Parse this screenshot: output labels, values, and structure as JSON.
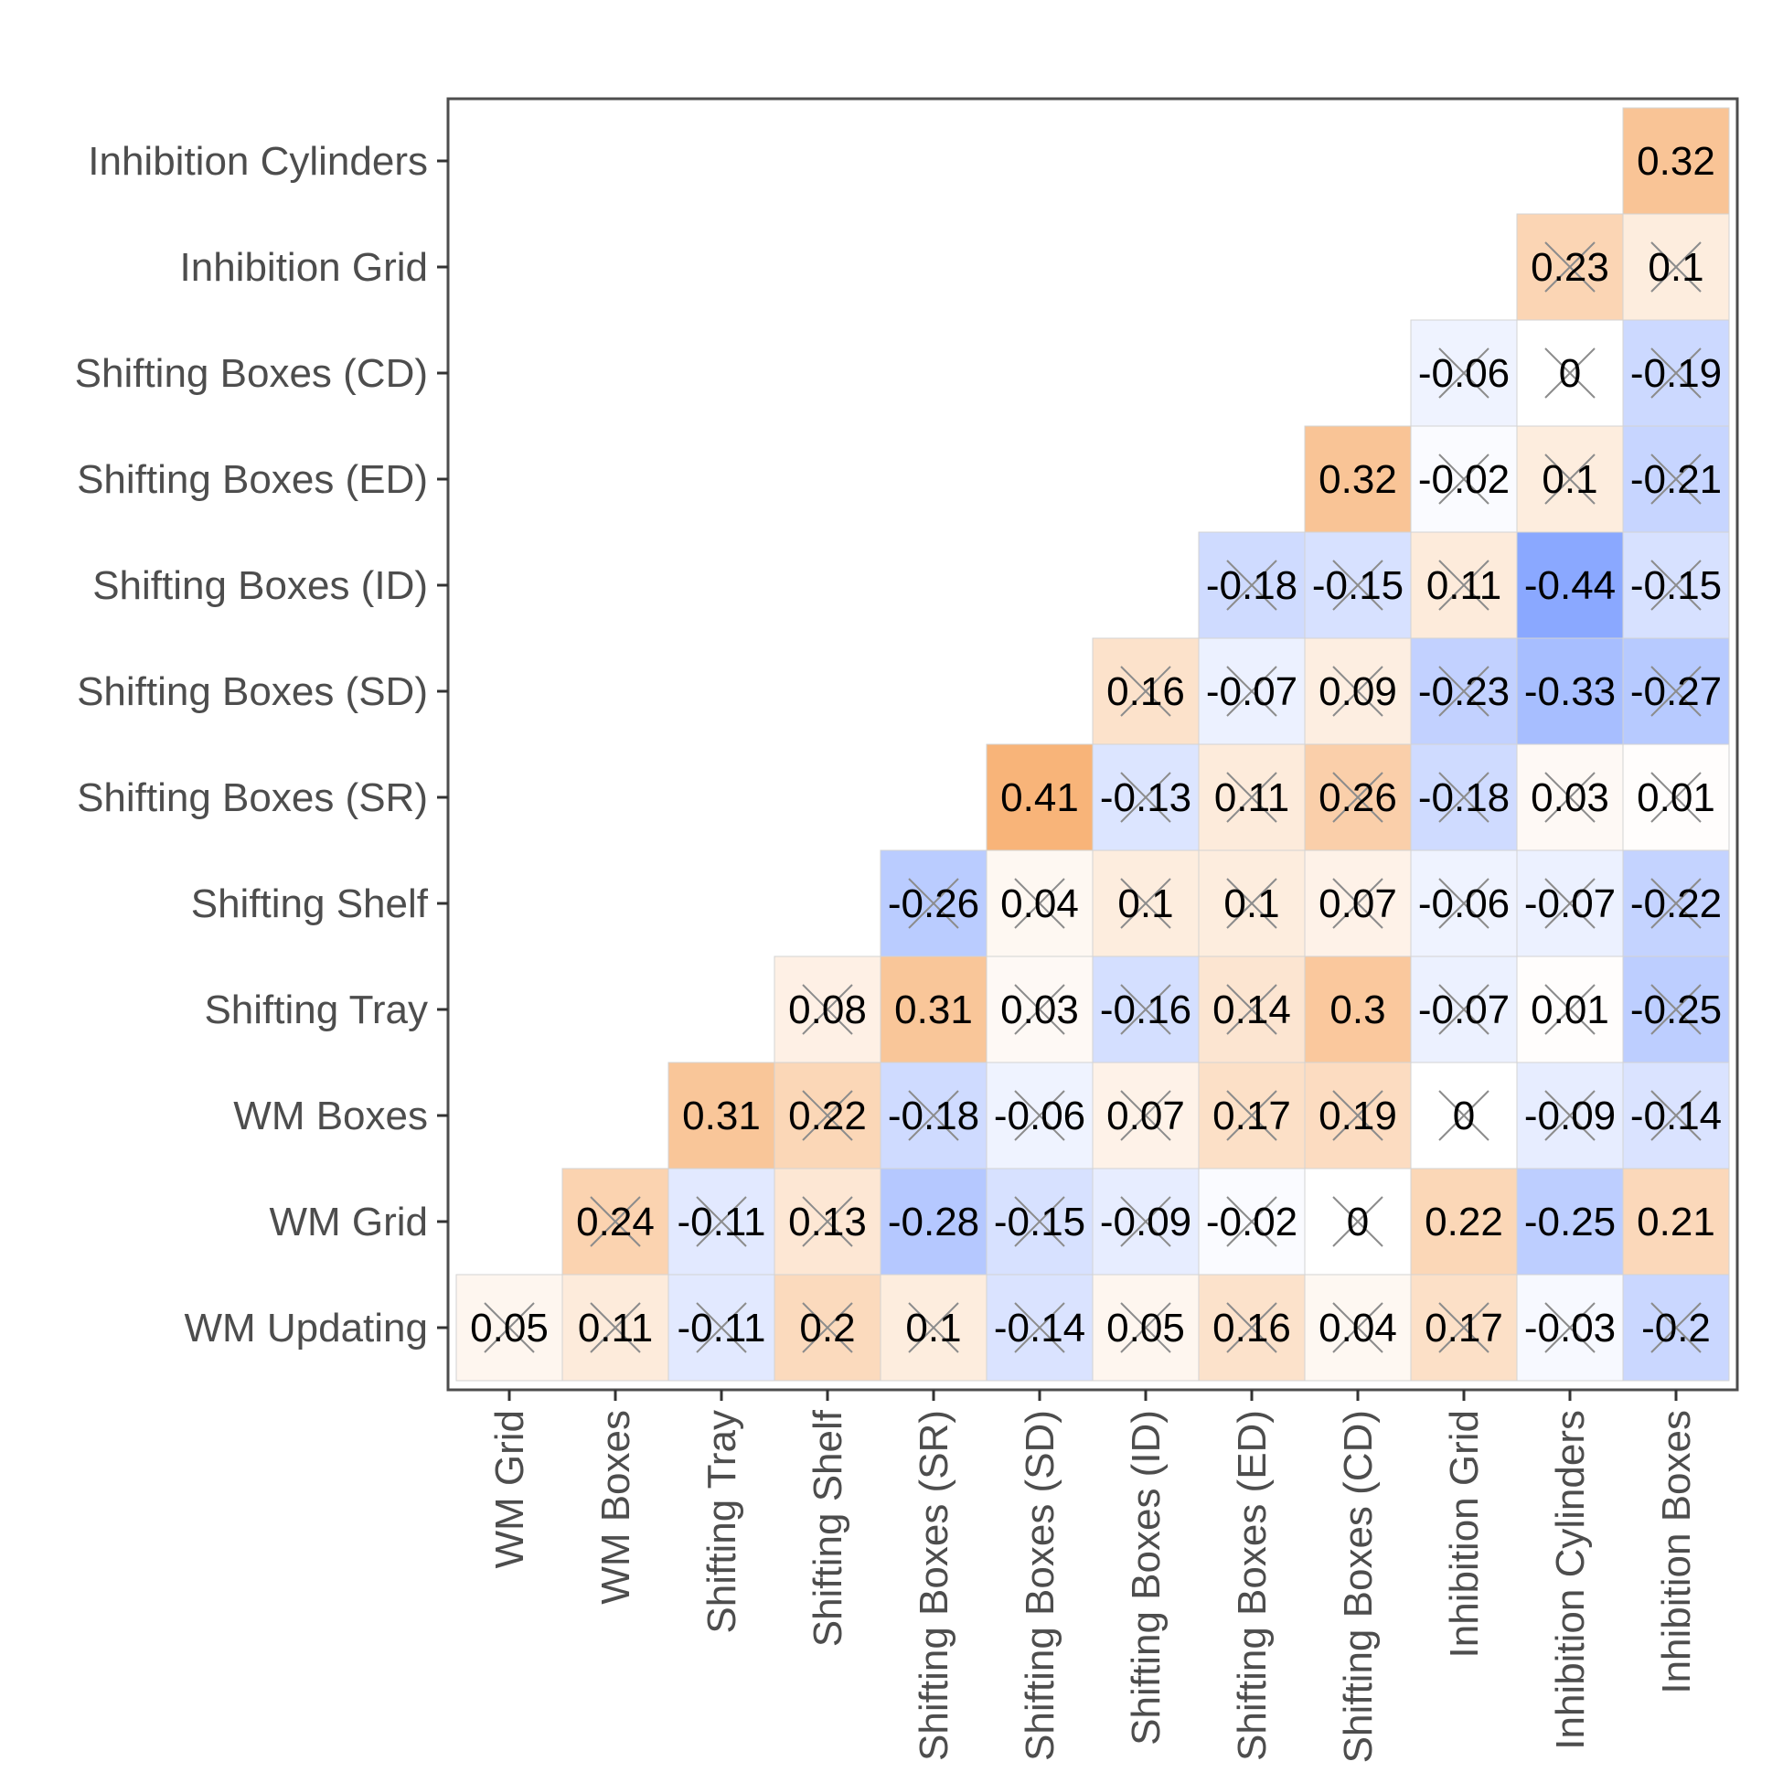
{
  "chart_data": {
    "type": "heatmap",
    "subtype": "correlation-lower-triangle",
    "rows": [
      "Inhibition Cylinders",
      "Inhibition Grid",
      "Shifting Boxes (CD)",
      "Shifting Boxes (ED)",
      "Shifting Boxes (ID)",
      "Shifting Boxes (SD)",
      "Shifting Boxes (SR)",
      "Shifting Shelf",
      "Shifting Tray",
      "WM Boxes",
      "WM Grid",
      "WM Updating"
    ],
    "columns": [
      "WM Grid",
      "WM Boxes",
      "Shifting Tray",
      "Shifting Shelf",
      "Shifting Boxes (SR)",
      "Shifting Boxes (SD)",
      "Shifting Boxes (ID)",
      "Shifting Boxes (ED)",
      "Shifting Boxes (CD)",
      "Inhibition Grid",
      "Inhibition Cylinders",
      "Inhibition Boxes"
    ],
    "cells": [
      {
        "row": "Inhibition Cylinders",
        "col": "Inhibition Boxes",
        "value": 0.32,
        "label": "0.32",
        "crossed": false
      },
      {
        "row": "Inhibition Grid",
        "col": "Inhibition Cylinders",
        "value": 0.23,
        "label": "0.23",
        "crossed": true
      },
      {
        "row": "Inhibition Grid",
        "col": "Inhibition Boxes",
        "value": 0.1,
        "label": "0.1",
        "crossed": true
      },
      {
        "row": "Shifting Boxes (CD)",
        "col": "Inhibition Grid",
        "value": -0.06,
        "label": "-0.06",
        "crossed": true
      },
      {
        "row": "Shifting Boxes (CD)",
        "col": "Inhibition Cylinders",
        "value": 0,
        "label": "0",
        "crossed": true
      },
      {
        "row": "Shifting Boxes (CD)",
        "col": "Inhibition Boxes",
        "value": -0.19,
        "label": "-0.19",
        "crossed": true
      },
      {
        "row": "Shifting Boxes (ED)",
        "col": "Shifting Boxes (CD)",
        "value": 0.32,
        "label": "0.32",
        "crossed": false
      },
      {
        "row": "Shifting Boxes (ED)",
        "col": "Inhibition Grid",
        "value": -0.02,
        "label": "-0.02",
        "crossed": true
      },
      {
        "row": "Shifting Boxes (ED)",
        "col": "Inhibition Cylinders",
        "value": 0.1,
        "label": "0.1",
        "crossed": true
      },
      {
        "row": "Shifting Boxes (ED)",
        "col": "Inhibition Boxes",
        "value": -0.21,
        "label": "-0.21",
        "crossed": true
      },
      {
        "row": "Shifting Boxes (ID)",
        "col": "Shifting Boxes (ED)",
        "value": -0.18,
        "label": "-0.18",
        "crossed": true
      },
      {
        "row": "Shifting Boxes (ID)",
        "col": "Shifting Boxes (CD)",
        "value": -0.15,
        "label": "-0.15",
        "crossed": true
      },
      {
        "row": "Shifting Boxes (ID)",
        "col": "Inhibition Grid",
        "value": 0.11,
        "label": "0.11",
        "crossed": true
      },
      {
        "row": "Shifting Boxes (ID)",
        "col": "Inhibition Cylinders",
        "value": -0.44,
        "label": "-0.44",
        "crossed": false
      },
      {
        "row": "Shifting Boxes (ID)",
        "col": "Inhibition Boxes",
        "value": -0.15,
        "label": "-0.15",
        "crossed": true
      },
      {
        "row": "Shifting Boxes (SD)",
        "col": "Shifting Boxes (ID)",
        "value": 0.16,
        "label": "0.16",
        "crossed": true
      },
      {
        "row": "Shifting Boxes (SD)",
        "col": "Shifting Boxes (ED)",
        "value": -0.07,
        "label": "-0.07",
        "crossed": true
      },
      {
        "row": "Shifting Boxes (SD)",
        "col": "Shifting Boxes (CD)",
        "value": 0.09,
        "label": "0.09",
        "crossed": true
      },
      {
        "row": "Shifting Boxes (SD)",
        "col": "Inhibition Grid",
        "value": -0.23,
        "label": "-0.23",
        "crossed": true
      },
      {
        "row": "Shifting Boxes (SD)",
        "col": "Inhibition Cylinders",
        "value": -0.33,
        "label": "-0.33",
        "crossed": false
      },
      {
        "row": "Shifting Boxes (SD)",
        "col": "Inhibition Boxes",
        "value": -0.27,
        "label": "-0.27",
        "crossed": true
      },
      {
        "row": "Shifting Boxes (SR)",
        "col": "Shifting Boxes (SD)",
        "value": 0.41,
        "label": "0.41",
        "crossed": false
      },
      {
        "row": "Shifting Boxes (SR)",
        "col": "Shifting Boxes (ID)",
        "value": -0.13,
        "label": "-0.13",
        "crossed": true
      },
      {
        "row": "Shifting Boxes (SR)",
        "col": "Shifting Boxes (ED)",
        "value": 0.11,
        "label": "0.11",
        "crossed": true
      },
      {
        "row": "Shifting Boxes (SR)",
        "col": "Shifting Boxes (CD)",
        "value": 0.26,
        "label": "0.26",
        "crossed": true
      },
      {
        "row": "Shifting Boxes (SR)",
        "col": "Inhibition Grid",
        "value": -0.18,
        "label": "-0.18",
        "crossed": true
      },
      {
        "row": "Shifting Boxes (SR)",
        "col": "Inhibition Cylinders",
        "value": 0.03,
        "label": "0.03",
        "crossed": true
      },
      {
        "row": "Shifting Boxes (SR)",
        "col": "Inhibition Boxes",
        "value": 0.01,
        "label": "0.01",
        "crossed": true
      },
      {
        "row": "Shifting Shelf",
        "col": "Shifting Boxes (SR)",
        "value": -0.26,
        "label": "-0.26",
        "crossed": true
      },
      {
        "row": "Shifting Shelf",
        "col": "Shifting Boxes (SD)",
        "value": 0.04,
        "label": "0.04",
        "crossed": true
      },
      {
        "row": "Shifting Shelf",
        "col": "Shifting Boxes (ID)",
        "value": 0.1,
        "label": "0.1",
        "crossed": true
      },
      {
        "row": "Shifting Shelf",
        "col": "Shifting Boxes (ED)",
        "value": 0.1,
        "label": "0.1",
        "crossed": true
      },
      {
        "row": "Shifting Shelf",
        "col": "Shifting Boxes (CD)",
        "value": 0.07,
        "label": "0.07",
        "crossed": true
      },
      {
        "row": "Shifting Shelf",
        "col": "Inhibition Grid",
        "value": -0.06,
        "label": "-0.06",
        "crossed": true
      },
      {
        "row": "Shifting Shelf",
        "col": "Inhibition Cylinders",
        "value": -0.07,
        "label": "-0.07",
        "crossed": true
      },
      {
        "row": "Shifting Shelf",
        "col": "Inhibition Boxes",
        "value": -0.22,
        "label": "-0.22",
        "crossed": true
      },
      {
        "row": "Shifting Tray",
        "col": "Shifting Shelf",
        "value": 0.08,
        "label": "0.08",
        "crossed": true
      },
      {
        "row": "Shifting Tray",
        "col": "Shifting Boxes (SR)",
        "value": 0.31,
        "label": "0.31",
        "crossed": false
      },
      {
        "row": "Shifting Tray",
        "col": "Shifting Boxes (SD)",
        "value": 0.03,
        "label": "0.03",
        "crossed": true
      },
      {
        "row": "Shifting Tray",
        "col": "Shifting Boxes (ID)",
        "value": -0.16,
        "label": "-0.16",
        "crossed": true
      },
      {
        "row": "Shifting Tray",
        "col": "Shifting Boxes (ED)",
        "value": 0.14,
        "label": "0.14",
        "crossed": true
      },
      {
        "row": "Shifting Tray",
        "col": "Shifting Boxes (CD)",
        "value": 0.3,
        "label": "0.3",
        "crossed": false
      },
      {
        "row": "Shifting Tray",
        "col": "Inhibition Grid",
        "value": -0.07,
        "label": "-0.07",
        "crossed": true
      },
      {
        "row": "Shifting Tray",
        "col": "Inhibition Cylinders",
        "value": 0.01,
        "label": "0.01",
        "crossed": true
      },
      {
        "row": "Shifting Tray",
        "col": "Inhibition Boxes",
        "value": -0.25,
        "label": "-0.25",
        "crossed": true
      },
      {
        "row": "WM Boxes",
        "col": "Shifting Tray",
        "value": 0.31,
        "label": "0.31",
        "crossed": false
      },
      {
        "row": "WM Boxes",
        "col": "Shifting Shelf",
        "value": 0.22,
        "label": "0.22",
        "crossed": true
      },
      {
        "row": "WM Boxes",
        "col": "Shifting Boxes (SR)",
        "value": -0.18,
        "label": "-0.18",
        "crossed": true
      },
      {
        "row": "WM Boxes",
        "col": "Shifting Boxes (SD)",
        "value": -0.06,
        "label": "-0.06",
        "crossed": true
      },
      {
        "row": "WM Boxes",
        "col": "Shifting Boxes (ID)",
        "value": 0.07,
        "label": "0.07",
        "crossed": true
      },
      {
        "row": "WM Boxes",
        "col": "Shifting Boxes (ED)",
        "value": 0.17,
        "label": "0.17",
        "crossed": true
      },
      {
        "row": "WM Boxes",
        "col": "Shifting Boxes (CD)",
        "value": 0.19,
        "label": "0.19",
        "crossed": true
      },
      {
        "row": "WM Boxes",
        "col": "Inhibition Grid",
        "value": 0,
        "label": "0",
        "crossed": true
      },
      {
        "row": "WM Boxes",
        "col": "Inhibition Cylinders",
        "value": -0.09,
        "label": "-0.09",
        "crossed": true
      },
      {
        "row": "WM Boxes",
        "col": "Inhibition Boxes",
        "value": -0.14,
        "label": "-0.14",
        "crossed": true
      },
      {
        "row": "WM Grid",
        "col": "WM Boxes",
        "value": 0.24,
        "label": "0.24",
        "crossed": true
      },
      {
        "row": "WM Grid",
        "col": "Shifting Tray",
        "value": -0.11,
        "label": "-0.11",
        "crossed": true
      },
      {
        "row": "WM Grid",
        "col": "Shifting Shelf",
        "value": 0.13,
        "label": "0.13",
        "crossed": true
      },
      {
        "row": "WM Grid",
        "col": "Shifting Boxes (SR)",
        "value": -0.28,
        "label": "-0.28",
        "crossed": false
      },
      {
        "row": "WM Grid",
        "col": "Shifting Boxes (SD)",
        "value": -0.15,
        "label": "-0.15",
        "crossed": true
      },
      {
        "row": "WM Grid",
        "col": "Shifting Boxes (ID)",
        "value": -0.09,
        "label": "-0.09",
        "crossed": true
      },
      {
        "row": "WM Grid",
        "col": "Shifting Boxes (ED)",
        "value": -0.02,
        "label": "-0.02",
        "crossed": true
      },
      {
        "row": "WM Grid",
        "col": "Shifting Boxes (CD)",
        "value": 0,
        "label": "0",
        "crossed": true
      },
      {
        "row": "WM Grid",
        "col": "Inhibition Grid",
        "value": 0.22,
        "label": "0.22",
        "crossed": false
      },
      {
        "row": "WM Grid",
        "col": "Inhibition Cylinders",
        "value": -0.25,
        "label": "-0.25",
        "crossed": false
      },
      {
        "row": "WM Grid",
        "col": "Inhibition Boxes",
        "value": 0.21,
        "label": "0.21",
        "crossed": false
      },
      {
        "row": "WM Updating",
        "col": "WM Grid",
        "value": 0.05,
        "label": "0.05",
        "crossed": true
      },
      {
        "row": "WM Updating",
        "col": "WM Boxes",
        "value": 0.11,
        "label": "0.11",
        "crossed": true
      },
      {
        "row": "WM Updating",
        "col": "Shifting Tray",
        "value": -0.11,
        "label": "-0.11",
        "crossed": true
      },
      {
        "row": "WM Updating",
        "col": "Shifting Shelf",
        "value": 0.2,
        "label": "0.2",
        "crossed": true
      },
      {
        "row": "WM Updating",
        "col": "Shifting Boxes (SR)",
        "value": 0.1,
        "label": "0.1",
        "crossed": true
      },
      {
        "row": "WM Updating",
        "col": "Shifting Boxes (SD)",
        "value": -0.14,
        "label": "-0.14",
        "crossed": true
      },
      {
        "row": "WM Updating",
        "col": "Shifting Boxes (ID)",
        "value": 0.05,
        "label": "0.05",
        "crossed": true
      },
      {
        "row": "WM Updating",
        "col": "Shifting Boxes (ED)",
        "value": 0.16,
        "label": "0.16",
        "crossed": true
      },
      {
        "row": "WM Updating",
        "col": "Shifting Boxes (CD)",
        "value": 0.04,
        "label": "0.04",
        "crossed": true
      },
      {
        "row": "WM Updating",
        "col": "Inhibition Grid",
        "value": 0.17,
        "label": "0.17",
        "crossed": true
      },
      {
        "row": "WM Updating",
        "col": "Inhibition Cylinders",
        "value": -0.03,
        "label": "-0.03",
        "crossed": true
      },
      {
        "row": "WM Updating",
        "col": "Inhibition Boxes",
        "value": -0.2,
        "label": "-0.2",
        "crossed": true
      }
    ],
    "color_scale": {
      "domain": [
        -1,
        0,
        1
      ],
      "negative": "#7a9cff",
      "zero": "#ffffff",
      "positive": "#f6a35b"
    },
    "title": "",
    "xlabel": "",
    "ylabel": ""
  }
}
